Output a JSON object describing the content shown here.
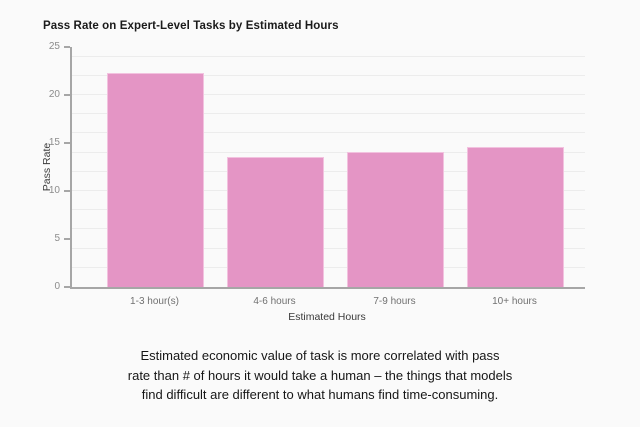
{
  "page": {
    "background": "#fafafa"
  },
  "chart_data": {
    "type": "bar",
    "title": "Pass Rate on Expert-Level Tasks by Estimated Hours",
    "categories": [
      "1-3 hour(s)",
      "4-6 hours",
      "7-9 hours",
      "10+ hours"
    ],
    "values": [
      22.2,
      13.4,
      14.0,
      14.5
    ],
    "xlabel": "Estimated Hours",
    "ylabel": "Pass Rate",
    "ylim": [
      0,
      25
    ],
    "yticks": [
      0,
      5,
      10,
      15,
      20,
      25
    ],
    "gridline_step": 2,
    "grid": true,
    "legend": false,
    "bar_color": "#e495c5",
    "bar_border_color": "#f2c2df",
    "axis_color": "#a6a6a6",
    "tick_label_color": "#8c8c8c",
    "caption": "Estimated economic value of task is more correlated with pass\nrate than # of hours it would take a human – the things that models\nfind difficult are different to what humans find time-consuming."
  }
}
